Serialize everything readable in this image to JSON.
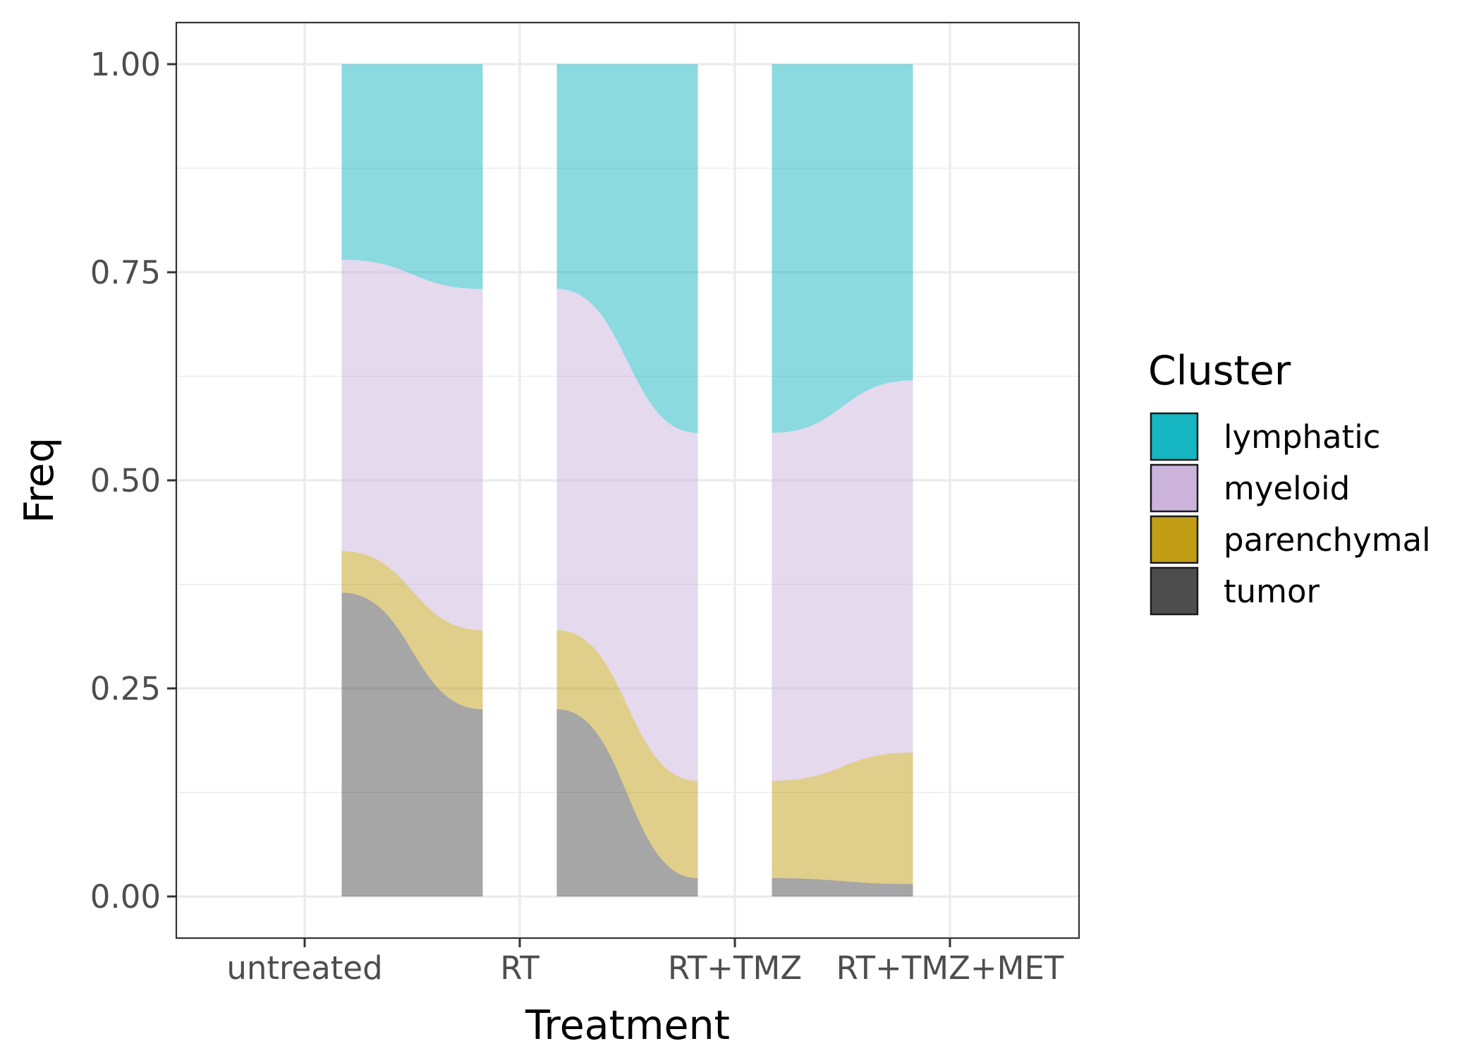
{
  "chart_data": {
    "type": "area",
    "subtype": "alluvial-stacked-proportions",
    "title": "",
    "xlabel": "Treatment",
    "ylabel": "Freq",
    "categories": [
      "untreated",
      "RT",
      "RT+TMZ",
      "RT+TMZ+MET"
    ],
    "ylim": [
      -0.05,
      1.05
    ],
    "yticks": [
      "0.00",
      "0.25",
      "0.50",
      "0.75",
      "1.00"
    ],
    "ytick_values": [
      0,
      0.25,
      0.5,
      0.75,
      1.0
    ],
    "grid": true,
    "legend_position": "right",
    "legend_title": "Cluster",
    "series": [
      {
        "name": "tumor",
        "color": "#4d4d4d",
        "values": [
          0.365,
          0.225,
          0.022,
          0.015
        ]
      },
      {
        "name": "parenchymal",
        "color": "#c29e17",
        "values": [
          0.05,
          0.095,
          0.117,
          0.158
        ]
      },
      {
        "name": "myeloid",
        "color": "#cbb3db",
        "values": [
          0.35,
          0.41,
          0.418,
          0.447
        ]
      },
      {
        "name": "lymphatic",
        "color": "#16b6c2",
        "values": [
          0.235,
          0.27,
          0.443,
          0.38
        ]
      }
    ],
    "legend_order": [
      "lymphatic",
      "myeloid",
      "parenchymal",
      "tumor"
    ],
    "fill_alpha": 0.5
  }
}
